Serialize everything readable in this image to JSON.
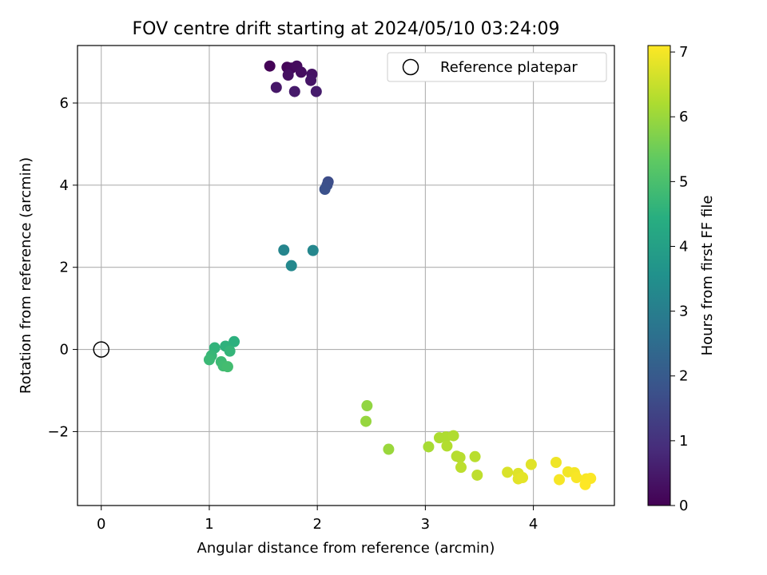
{
  "chart_data": {
    "type": "scatter",
    "title": "FOV centre drift starting at 2024/05/10 03:24:09",
    "xlabel": "Angular distance from reference (arcmin)",
    "ylabel": "Rotation from reference (arcmin)",
    "xlim": [
      -0.22,
      4.75
    ],
    "ylim": [
      -3.8,
      7.4
    ],
    "xticks": [
      0,
      1,
      2,
      3,
      4
    ],
    "yticks": [
      -2,
      0,
      2,
      4,
      6
    ],
    "grid": true,
    "legend": {
      "position": "top-right",
      "entries": [
        "Reference platepar"
      ]
    },
    "colorbar": {
      "label": "Hours from first FF file",
      "min": 0,
      "max": 7.1,
      "ticks": [
        0,
        1,
        2,
        3,
        4,
        5,
        6,
        7
      ],
      "colormap": "viridis"
    },
    "reference_point": {
      "x": 0,
      "y": 0
    },
    "points": [
      {
        "x": 1.56,
        "y": 6.9,
        "t": 0.05
      },
      {
        "x": 1.72,
        "y": 6.87,
        "t": 0.1
      },
      {
        "x": 1.76,
        "y": 6.85,
        "t": 0.15
      },
      {
        "x": 1.81,
        "y": 6.9,
        "t": 0.2
      },
      {
        "x": 1.85,
        "y": 6.75,
        "t": 0.25
      },
      {
        "x": 1.73,
        "y": 6.68,
        "t": 0.3
      },
      {
        "x": 1.95,
        "y": 6.7,
        "t": 0.35
      },
      {
        "x": 1.94,
        "y": 6.55,
        "t": 0.4
      },
      {
        "x": 1.62,
        "y": 6.38,
        "t": 0.45
      },
      {
        "x": 1.79,
        "y": 6.28,
        "t": 0.5
      },
      {
        "x": 1.99,
        "y": 6.28,
        "t": 0.55
      },
      {
        "x": 2.1,
        "y": 4.08,
        "t": 1.65
      },
      {
        "x": 2.09,
        "y": 4.0,
        "t": 1.7
      },
      {
        "x": 2.07,
        "y": 3.9,
        "t": 1.75
      },
      {
        "x": 1.69,
        "y": 2.42,
        "t": 3.2
      },
      {
        "x": 1.96,
        "y": 2.41,
        "t": 3.25
      },
      {
        "x": 1.76,
        "y": 2.04,
        "t": 3.3
      },
      {
        "x": 1.23,
        "y": 0.19,
        "t": 4.5
      },
      {
        "x": 1.15,
        "y": 0.08,
        "t": 4.55
      },
      {
        "x": 1.05,
        "y": 0.04,
        "t": 4.6
      },
      {
        "x": 1.19,
        "y": -0.04,
        "t": 4.65
      },
      {
        "x": 1.02,
        "y": -0.15,
        "t": 4.7
      },
      {
        "x": 1.0,
        "y": -0.25,
        "t": 4.75
      },
      {
        "x": 1.11,
        "y": -0.3,
        "t": 4.8
      },
      {
        "x": 1.13,
        "y": -0.4,
        "t": 4.85
      },
      {
        "x": 1.17,
        "y": -0.42,
        "t": 4.9
      },
      {
        "x": 2.46,
        "y": -1.37,
        "t": 5.9
      },
      {
        "x": 2.45,
        "y": -1.75,
        "t": 5.95
      },
      {
        "x": 2.66,
        "y": -2.43,
        "t": 6.0
      },
      {
        "x": 3.03,
        "y": -2.37,
        "t": 6.15
      },
      {
        "x": 3.13,
        "y": -2.15,
        "t": 6.2
      },
      {
        "x": 3.19,
        "y": -2.13,
        "t": 6.22
      },
      {
        "x": 3.26,
        "y": -2.1,
        "t": 6.25
      },
      {
        "x": 3.2,
        "y": -2.35,
        "t": 6.27
      },
      {
        "x": 3.29,
        "y": -2.6,
        "t": 6.3
      },
      {
        "x": 3.32,
        "y": -2.63,
        "t": 6.32
      },
      {
        "x": 3.46,
        "y": -2.61,
        "t": 6.35
      },
      {
        "x": 3.33,
        "y": -2.87,
        "t": 6.38
      },
      {
        "x": 3.48,
        "y": -3.06,
        "t": 6.4
      },
      {
        "x": 3.76,
        "y": -2.99,
        "t": 6.7
      },
      {
        "x": 3.86,
        "y": -3.02,
        "t": 6.75
      },
      {
        "x": 3.98,
        "y": -2.8,
        "t": 6.78
      },
      {
        "x": 3.86,
        "y": -3.15,
        "t": 6.8
      },
      {
        "x": 3.9,
        "y": -3.12,
        "t": 6.82
      },
      {
        "x": 4.21,
        "y": -2.75,
        "t": 6.95
      },
      {
        "x": 4.32,
        "y": -2.98,
        "t": 6.98
      },
      {
        "x": 4.38,
        "y": -3.0,
        "t": 7.0
      },
      {
        "x": 4.24,
        "y": -3.17,
        "t": 7.02
      },
      {
        "x": 4.4,
        "y": -3.12,
        "t": 7.04
      },
      {
        "x": 4.49,
        "y": -3.15,
        "t": 7.06
      },
      {
        "x": 4.53,
        "y": -3.14,
        "t": 7.08
      },
      {
        "x": 4.48,
        "y": -3.29,
        "t": 7.1
      }
    ]
  }
}
